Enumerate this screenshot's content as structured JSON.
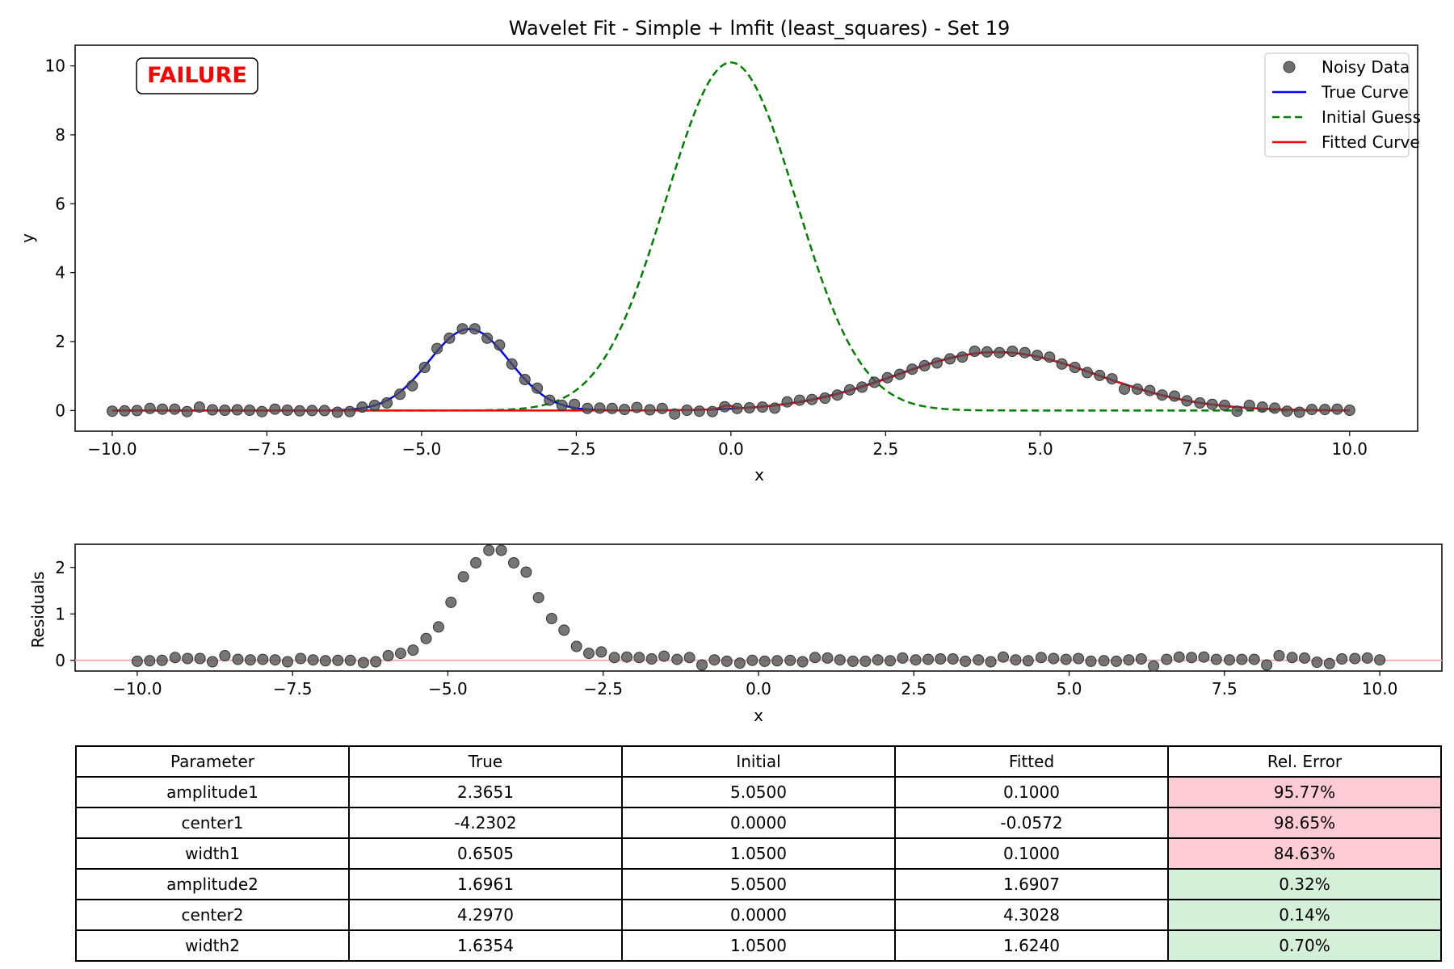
{
  "chart_data": [
    {
      "type": "line",
      "title": "Wavelet Fit - Simple + lmfit (least_squares) - Set 19",
      "xlabel": "x",
      "ylabel": "y",
      "xlim": [
        -10.6,
        11.1
      ],
      "ylim": [
        -0.6,
        10.6
      ],
      "xticks": [
        -10.0,
        -7.5,
        -5.0,
        -2.5,
        0.0,
        2.5,
        5.0,
        7.5,
        10.0
      ],
      "xtick_labels": [
        "−10.0",
        "−7.5",
        "−5.0",
        "−2.5",
        "0.0",
        "2.5",
        "5.0",
        "7.5",
        "10.0"
      ],
      "yticks": [
        0,
        2,
        4,
        6,
        8,
        10
      ],
      "ytick_labels": [
        "0",
        "2",
        "4",
        "6",
        "8",
        "10"
      ],
      "grid": false,
      "legend_position": "top-right",
      "annotation": {
        "text": "FAILURE",
        "color": "#ff0000",
        "position": "top-left"
      },
      "series": [
        {
          "name": "Noisy Data",
          "style": "markers",
          "color": "#808080",
          "x": [
            -10.0,
            -9.8,
            -9.6,
            -9.39,
            -9.19,
            -8.99,
            -8.79,
            -8.59,
            -8.38,
            -8.18,
            -7.98,
            -7.78,
            -7.58,
            -7.37,
            -7.17,
            -6.97,
            -6.77,
            -6.57,
            -6.36,
            -6.16,
            -5.96,
            -5.76,
            -5.56,
            -5.35,
            -5.15,
            -4.95,
            -4.75,
            -4.55,
            -4.34,
            -4.14,
            -3.94,
            -3.74,
            -3.54,
            -3.33,
            -3.13,
            -2.93,
            -2.73,
            -2.53,
            -2.32,
            -2.12,
            -1.92,
            -1.72,
            -1.52,
            -1.31,
            -1.11,
            -0.91,
            -0.71,
            -0.51,
            -0.3,
            -0.1,
            0.1,
            0.3,
            0.51,
            0.71,
            0.91,
            1.11,
            1.31,
            1.52,
            1.72,
            1.92,
            2.12,
            2.32,
            2.53,
            2.73,
            2.93,
            3.13,
            3.33,
            3.54,
            3.74,
            3.94,
            4.14,
            4.34,
            4.55,
            4.75,
            4.95,
            5.15,
            5.35,
            5.56,
            5.76,
            5.96,
            6.16,
            6.36,
            6.57,
            6.77,
            6.97,
            7.17,
            7.37,
            7.58,
            7.78,
            7.98,
            8.18,
            8.38,
            8.59,
            8.79,
            8.99,
            9.19,
            9.39,
            9.6,
            9.8,
            10.0
          ],
          "y": [
            -0.02,
            -0.01,
            0.0,
            0.06,
            0.04,
            0.04,
            -0.03,
            0.1,
            0.02,
            0.01,
            0.02,
            0.01,
            -0.03,
            0.04,
            0.01,
            -0.01,
            0.0,
            0.0,
            -0.05,
            -0.03,
            0.1,
            0.15,
            0.22,
            0.47,
            0.72,
            1.25,
            1.8,
            2.1,
            2.37,
            2.37,
            2.1,
            1.9,
            1.35,
            0.9,
            0.65,
            0.3,
            0.15,
            0.18,
            0.06,
            0.07,
            0.06,
            0.03,
            0.09,
            0.02,
            0.06,
            -0.1,
            0.01,
            -0.02,
            -0.03,
            0.11,
            0.06,
            0.08,
            0.1,
            0.07,
            0.25,
            0.3,
            0.32,
            0.36,
            0.45,
            0.6,
            0.68,
            0.82,
            0.95,
            1.05,
            1.2,
            1.3,
            1.38,
            1.5,
            1.55,
            1.72,
            1.7,
            1.68,
            1.72,
            1.68,
            1.6,
            1.55,
            1.35,
            1.25,
            1.1,
            1.02,
            0.92,
            0.62,
            0.62,
            0.58,
            0.45,
            0.42,
            0.28,
            0.22,
            0.18,
            0.15,
            -0.02,
            0.15,
            0.1,
            0.07,
            -0.02,
            -0.05,
            0.03,
            0.03,
            0.04,
            0.01
          ]
        },
        {
          "name": "True Curve",
          "style": "solid",
          "color": "#0000ff",
          "amplitudes": [
            2.3651,
            1.6961
          ],
          "centers": [
            -4.2302,
            4.297
          ],
          "widths": [
            0.6505,
            1.6354
          ]
        },
        {
          "name": "Initial Guess",
          "style": "dashed",
          "color": "#008000",
          "amplitudes": [
            5.05,
            5.05
          ],
          "centers": [
            0.0,
            0.0
          ],
          "widths": [
            1.05,
            1.05
          ]
        },
        {
          "name": "Fitted Curve",
          "style": "solid",
          "color": "#ff0000",
          "amplitudes": [
            0.1,
            1.6907
          ],
          "centers": [
            -0.0572,
            4.3028
          ],
          "widths": [
            0.1,
            1.624
          ]
        }
      ]
    },
    {
      "type": "scatter",
      "title": "",
      "xlabel": "x",
      "ylabel": "Residuals",
      "xlim": [
        -11.0,
        11.0
      ],
      "ylim": [
        -0.23,
        2.5
      ],
      "xticks": [
        -10.0,
        -7.5,
        -5.0,
        -2.5,
        0.0,
        2.5,
        5.0,
        7.5,
        10.0
      ],
      "xtick_labels": [
        "−10.0",
        "−7.5",
        "−5.0",
        "−2.5",
        "0.0",
        "2.5",
        "5.0",
        "7.5",
        "10.0"
      ],
      "yticks": [
        0,
        1,
        2
      ],
      "ytick_labels": [
        "0",
        "1",
        "2"
      ],
      "grid": false,
      "zero_line_color": "#ffaaaa",
      "series": [
        {
          "style": "markers",
          "color": "#808080",
          "y": [
            -0.02,
            -0.01,
            0.0,
            0.06,
            0.04,
            0.04,
            -0.03,
            0.1,
            0.02,
            0.01,
            0.02,
            0.01,
            -0.03,
            0.04,
            0.01,
            -0.01,
            0.0,
            0.0,
            -0.05,
            -0.03,
            0.1,
            0.15,
            0.22,
            0.47,
            0.72,
            1.25,
            1.8,
            2.1,
            2.37,
            2.37,
            2.1,
            1.9,
            1.35,
            0.9,
            0.65,
            0.3,
            0.15,
            0.18,
            0.06,
            0.07,
            0.06,
            0.03,
            0.09,
            0.02,
            0.06,
            -0.1,
            0.01,
            -0.02,
            -0.06,
            0.0,
            -0.02,
            -0.01,
            0.0,
            -0.03,
            0.06,
            0.05,
            0.01,
            -0.02,
            -0.02,
            0.01,
            -0.01,
            0.05,
            0.01,
            0.02,
            0.03,
            0.03,
            -0.02,
            0.01,
            -0.03,
            0.07,
            0.01,
            -0.01,
            0.06,
            0.04,
            0.02,
            0.04,
            -0.02,
            -0.01,
            -0.02,
            0.01,
            0.03,
            -0.12,
            0.02,
            0.07,
            0.06,
            0.07,
            0.02,
            0.01,
            0.02,
            0.02,
            -0.1,
            0.1,
            0.06,
            0.05,
            -0.04,
            -0.07,
            0.03,
            0.04,
            0.05,
            0.01
          ]
        }
      ]
    }
  ],
  "table": {
    "headers": [
      "Parameter",
      "True",
      "Initial",
      "Fitted",
      "Rel. Error"
    ],
    "rows": [
      {
        "cells": [
          "amplitude1",
          "2.3651",
          "5.0500",
          "0.1000",
          "95.77%"
        ],
        "status": "bad"
      },
      {
        "cells": [
          "center1",
          "-4.2302",
          "0.0000",
          "-0.0572",
          "98.65%"
        ],
        "status": "bad"
      },
      {
        "cells": [
          "width1",
          "0.6505",
          "1.0500",
          "0.1000",
          "84.63%"
        ],
        "status": "bad"
      },
      {
        "cells": [
          "amplitude2",
          "1.6961",
          "5.0500",
          "1.6907",
          "0.32%"
        ],
        "status": "good"
      },
      {
        "cells": [
          "center2",
          "4.2970",
          "0.0000",
          "4.3028",
          "0.14%"
        ],
        "status": "good"
      },
      {
        "cells": [
          "width2",
          "1.6354",
          "1.0500",
          "1.6240",
          "0.70%"
        ],
        "status": "good"
      }
    ],
    "colors": {
      "bad": "#ffccd5",
      "good": "#d5f0d8"
    }
  }
}
